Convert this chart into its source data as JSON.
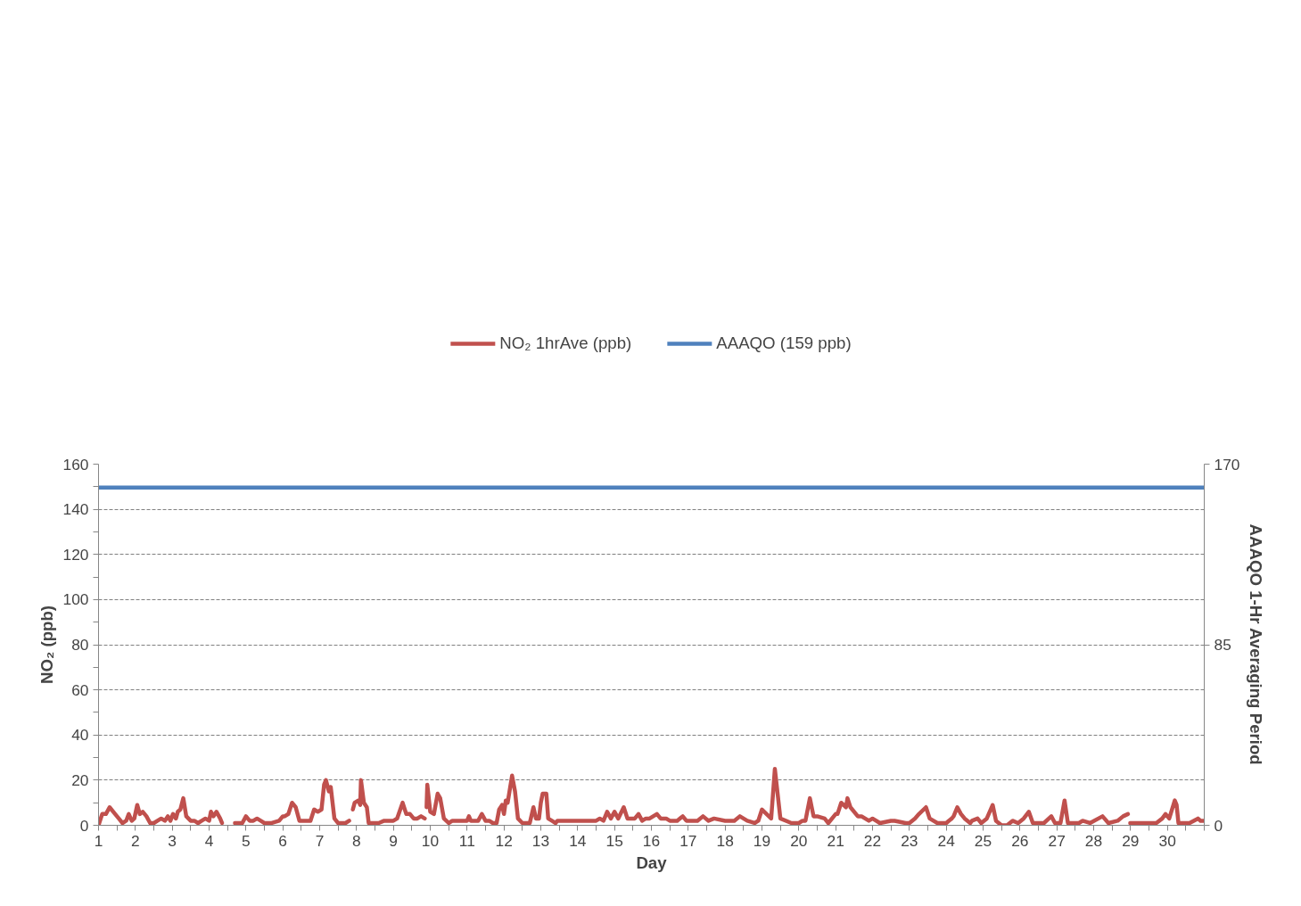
{
  "chart_data": {
    "type": "line",
    "xlabel": "Day",
    "ylabel": "NO₂ (ppb)",
    "y2label": "AAAQO 1-Hr Averaging Period",
    "xlim": [
      1,
      31
    ],
    "ylim": [
      0,
      160
    ],
    "y2lim": [
      0,
      170
    ],
    "xticks": [
      1,
      {
        "value": 1.5,
        "label": null
      },
      2,
      {
        "value": 2.5,
        "label": null
      },
      3,
      {
        "value": 3.5,
        "label": null
      },
      4,
      {
        "value": 4.5,
        "label": null
      },
      5,
      {
        "value": 5.5,
        "label": null
      },
      6,
      {
        "value": 6.5,
        "label": null
      },
      7,
      {
        "value": 7.5,
        "label": null
      },
      8,
      {
        "value": 8.5,
        "label": null
      },
      9,
      {
        "value": 9.5,
        "label": null
      },
      10,
      {
        "value": 10.5,
        "label": null
      },
      11,
      {
        "value": 11.5,
        "label": null
      },
      12,
      {
        "value": 12.5,
        "label": null
      },
      13,
      {
        "value": 13.5,
        "label": null
      },
      14,
      {
        "value": 14.5,
        "label": null
      },
      15,
      {
        "value": 15.5,
        "label": null
      },
      16,
      {
        "value": 16.5,
        "label": null
      },
      17,
      {
        "value": 17.5,
        "label": null
      },
      18,
      {
        "value": 18.5,
        "label": null
      },
      19,
      {
        "value": 19.5,
        "label": null
      },
      20,
      {
        "value": 20.5,
        "label": null
      },
      21,
      {
        "value": 21.5,
        "label": null
      },
      22,
      {
        "value": 22.5,
        "label": null
      },
      23,
      {
        "value": 23.5,
        "label": null
      },
      24,
      {
        "value": 24.5,
        "label": null
      },
      25,
      {
        "value": 25.5,
        "label": null
      },
      26,
      {
        "value": 26.5,
        "label": null
      },
      27,
      {
        "value": 27.5,
        "label": null
      },
      28,
      {
        "value": 28.5,
        "label": null
      },
      29,
      {
        "value": 29.5,
        "label": null
      },
      30,
      {
        "value": 30.5,
        "label": null
      },
      {
        "value": 31,
        "label": null
      }
    ],
    "yticks": [
      0,
      {
        "value": 10,
        "label": null
      },
      20,
      {
        "value": 30,
        "label": null
      },
      40,
      {
        "value": 50,
        "label": null
      },
      60,
      {
        "value": 70,
        "label": null
      },
      80,
      {
        "value": 90,
        "label": null
      },
      100,
      {
        "value": 110,
        "label": null
      },
      120,
      {
        "value": 130,
        "label": null
      },
      140,
      {
        "value": 150,
        "label": null
      },
      160
    ],
    "y2ticks": [
      0,
      85,
      170
    ],
    "grid": "y",
    "legend": "top",
    "marker": "none",
    "line_style": "solid",
    "series": [
      {
        "name": "NO₂ 1hrAve (ppb)",
        "color": "#c0504d",
        "x": [
          1.0,
          1.1,
          1.2,
          1.3,
          1.45,
          1.55,
          1.65,
          1.75,
          1.82,
          1.9,
          1.97,
          2.05,
          2.12,
          2.2,
          2.3,
          2.4,
          2.5,
          2.6,
          2.7,
          2.8,
          2.88,
          2.95,
          3.02,
          3.1,
          3.15,
          3.22,
          3.3,
          3.38,
          3.5,
          3.6,
          3.7,
          3.8,
          3.9,
          4.0,
          4.05,
          4.12,
          4.2,
          4.3,
          4.35,
          4.5,
          4.7,
          4.9,
          5.0,
          5.1,
          5.2,
          5.3,
          5.4,
          5.5,
          5.7,
          5.9,
          6.0,
          6.05,
          6.15,
          6.25,
          6.35,
          6.45,
          6.6,
          6.75,
          6.85,
          6.95,
          7.05,
          7.12,
          7.17,
          7.25,
          7.3,
          7.4,
          7.5,
          7.6,
          7.7,
          7.8,
          7.85,
          7.9,
          7.95,
          8.05,
          8.1,
          8.12,
          8.2,
          8.28,
          8.33,
          8.6,
          8.75,
          9.0,
          9.1,
          9.25,
          9.35,
          9.45,
          9.55,
          9.65,
          9.75,
          9.85,
          9.88,
          9.9,
          9.92,
          10.0,
          10.1,
          10.2,
          10.27,
          10.37,
          10.5,
          10.6,
          10.8,
          11.0,
          11.05,
          11.1,
          11.3,
          11.4,
          11.5,
          11.6,
          11.7,
          11.8,
          11.87,
          11.95,
          12.0,
          12.05,
          12.1,
          12.15,
          12.22,
          12.3,
          12.38,
          12.5,
          12.7,
          12.8,
          12.87,
          12.95,
          13.0,
          13.05,
          13.15,
          13.2,
          13.3,
          13.4,
          13.45,
          14.0,
          14.5,
          14.6,
          14.7,
          14.8,
          14.9,
          15.0,
          15.1,
          15.25,
          15.35,
          15.55,
          15.65,
          15.75,
          15.85,
          15.95,
          16.15,
          16.25,
          16.4,
          16.5,
          16.7,
          16.85,
          16.95,
          17.25,
          17.4,
          17.55,
          17.7,
          18.0,
          18.25,
          18.4,
          18.6,
          18.8,
          18.9,
          19.0,
          19.25,
          19.35,
          19.5,
          19.8,
          20.0,
          20.1,
          20.18,
          20.3,
          20.4,
          20.5,
          20.7,
          20.8,
          21.0,
          21.05,
          21.15,
          21.28,
          21.32,
          21.4,
          21.6,
          21.7,
          21.9,
          22.0,
          22.2,
          22.5,
          22.6,
          22.9,
          23.0,
          23.15,
          23.26,
          23.45,
          23.55,
          23.76,
          24.0,
          24.07,
          24.15,
          24.2,
          24.3,
          24.4,
          24.5,
          24.65,
          24.7,
          24.85,
          24.95,
          25.1,
          25.26,
          25.35,
          25.5,
          25.65,
          25.8,
          25.95,
          26.1,
          26.24,
          26.35,
          26.65,
          26.85,
          26.95,
          27.1,
          27.21,
          27.3,
          27.6,
          27.7,
          27.9,
          28.24,
          28.4,
          28.65,
          28.8,
          28.93,
          28.96,
          28.99,
          29.7,
          29.86,
          29.95,
          30.05,
          30.2,
          30.25,
          30.3,
          30.6,
          30.83,
          30.9,
          31.0
        ],
        "values": [
          0,
          5,
          5,
          8,
          5,
          3,
          1,
          2,
          5,
          2,
          3,
          9,
          5,
          6,
          4,
          1,
          1,
          2,
          3,
          2,
          4,
          2,
          5,
          3,
          6,
          7,
          12,
          4,
          2,
          2,
          1,
          2,
          3,
          2,
          6,
          4,
          6,
          3,
          1,
          null,
          1,
          1,
          4,
          2,
          2,
          3,
          2,
          1,
          1,
          2,
          4,
          4,
          5,
          10,
          8,
          2,
          2,
          2,
          7,
          6,
          7,
          18,
          20,
          15,
          17,
          3,
          1,
          1,
          1,
          2,
          null,
          7,
          10,
          11,
          9,
          20,
          10,
          8,
          1,
          1,
          2,
          2,
          3,
          10,
          5,
          5,
          3,
          3,
          4,
          3,
          null,
          8,
          18,
          6,
          5,
          14,
          12,
          3,
          1,
          2,
          2,
          2,
          4,
          2,
          2,
          5,
          2,
          2,
          1,
          1,
          7,
          9,
          5,
          11,
          10,
          15,
          22,
          15,
          3,
          1,
          1,
          8,
          3,
          3,
          10,
          14,
          14,
          3,
          2,
          1,
          2,
          2,
          2,
          3,
          2,
          6,
          3,
          6,
          3,
          8,
          3,
          3,
          5,
          2,
          3,
          3,
          5,
          3,
          3,
          2,
          2,
          4,
          2,
          2,
          4,
          2,
          3,
          2,
          2,
          4,
          2,
          1,
          2,
          7,
          3,
          25,
          3,
          1,
          1,
          2,
          2,
          12,
          4,
          4,
          3,
          1,
          5,
          5,
          10,
          8,
          12,
          8,
          4,
          4,
          2,
          3,
          1,
          2,
          2,
          1,
          1,
          3,
          5,
          8,
          3,
          1,
          1,
          2,
          3,
          4,
          8,
          5,
          3,
          1,
          2,
          3,
          1,
          3,
          9,
          2,
          0,
          0,
          2,
          1,
          3,
          6,
          1,
          1,
          4,
          1,
          1,
          11,
          1,
          1,
          2,
          1,
          4,
          1,
          2,
          4,
          5,
          null,
          1,
          1,
          3,
          5,
          3,
          11,
          9,
          1,
          1,
          3,
          2,
          2
        ]
      },
      {
        "name": "AAAQO (159 ppb)",
        "color": "#4f81bd",
        "axis": "y2",
        "x": [
          1,
          31
        ],
        "values": [
          159,
          159
        ]
      }
    ]
  }
}
